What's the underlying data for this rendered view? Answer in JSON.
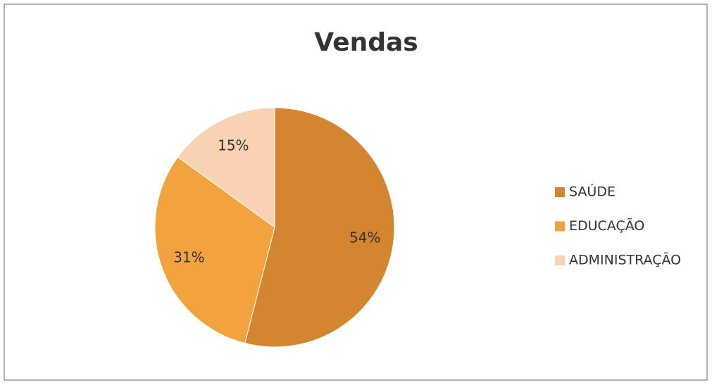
{
  "chart_data": {
    "type": "pie",
    "title": "Vendas",
    "categories": [
      "SAÚDE",
      "EDUCAÇÃO",
      "ADMINISTRAÇÃO"
    ],
    "values": [
      54,
      31,
      15
    ],
    "value_labels": [
      "54%",
      "31%",
      "15%"
    ],
    "colors": [
      "#d4852f",
      "#f2a33d",
      "#f9d3b1"
    ],
    "legend": "right"
  }
}
